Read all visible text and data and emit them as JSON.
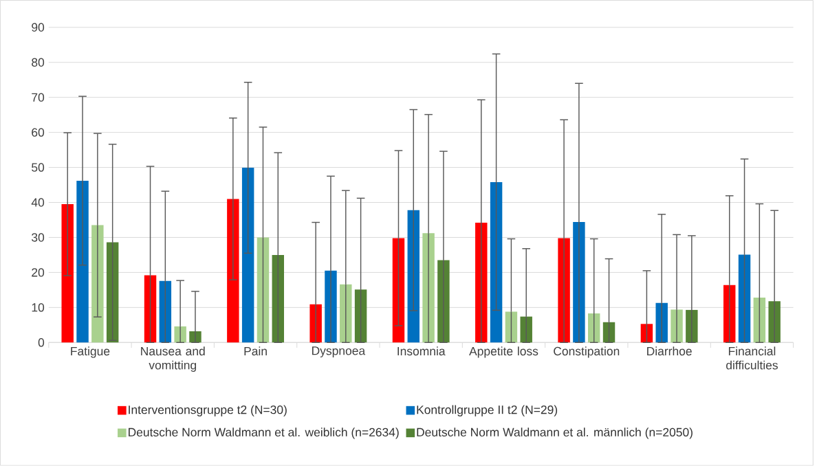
{
  "chart_data": {
    "type": "bar",
    "categories": [
      "Fatigue",
      "Nausea and vomitting",
      "Pain",
      "Dyspnoea",
      "Insomnia",
      "Appetite loss",
      "Constipation",
      "Diarrhoe",
      "Financial difficulties"
    ],
    "series": [
      {
        "name": "Interventionsgruppe t2 (N=30)",
        "color": "#ff0000",
        "values": [
          39.5,
          19.2,
          41.0,
          10.9,
          29.8,
          34.2,
          29.8,
          5.3,
          16.4
        ],
        "errors": [
          20.4,
          [
            0,
            50.3
          ],
          23.1,
          [
            0,
            34.3
          ],
          25.0,
          [
            0,
            69.3
          ],
          [
            0,
            63.6
          ],
          [
            0,
            20.5
          ],
          [
            0,
            41.9
          ]
        ]
      },
      {
        "name": "Kontrollgruppe II t2 (N=29)",
        "color": "#0070c0",
        "values": [
          46.2,
          17.6,
          49.9,
          20.5,
          37.8,
          45.8,
          34.4,
          11.3,
          25.1
        ],
        "errors": [
          24.1,
          [
            0,
            43.2
          ],
          24.4,
          [
            0,
            47.5
          ],
          28.7,
          36.6,
          [
            0,
            74.0
          ],
          [
            0,
            36.6
          ],
          [
            0,
            52.4
          ]
        ]
      },
      {
        "name": "Deutsche Norm  Waldmann et al. weiblich (n=2634)",
        "color": "#a9d18e",
        "values": [
          33.5,
          4.6,
          30.0,
          16.6,
          31.2,
          8.8,
          8.3,
          9.4,
          12.8
        ],
        "errors": [
          26.2,
          [
            0,
            17.7
          ],
          [
            0,
            61.5
          ],
          [
            0,
            43.4
          ],
          [
            0,
            65.1
          ],
          [
            0,
            29.6
          ],
          [
            0,
            29.6
          ],
          [
            0,
            30.8
          ],
          [
            0,
            39.6
          ]
        ]
      },
      {
        "name": "Deutsche Norm Waldmann et al. männlich (n=2050)",
        "color": "#548235",
        "values": [
          28.6,
          3.2,
          25.0,
          15.1,
          23.5,
          7.4,
          5.8,
          9.3,
          11.8
        ],
        "errors": [
          28.0,
          [
            0,
            14.6
          ],
          [
            0,
            54.2
          ],
          [
            0,
            41.2
          ],
          [
            0,
            54.6
          ],
          [
            0,
            26.8
          ],
          [
            0,
            23.9
          ],
          [
            0,
            30.5
          ],
          [
            0,
            37.7
          ]
        ]
      }
    ],
    "ylim": [
      0,
      90
    ],
    "yticks": [
      0,
      10,
      20,
      30,
      40,
      50,
      60,
      70,
      80,
      90
    ],
    "grid": "y",
    "legend": "bottom"
  }
}
